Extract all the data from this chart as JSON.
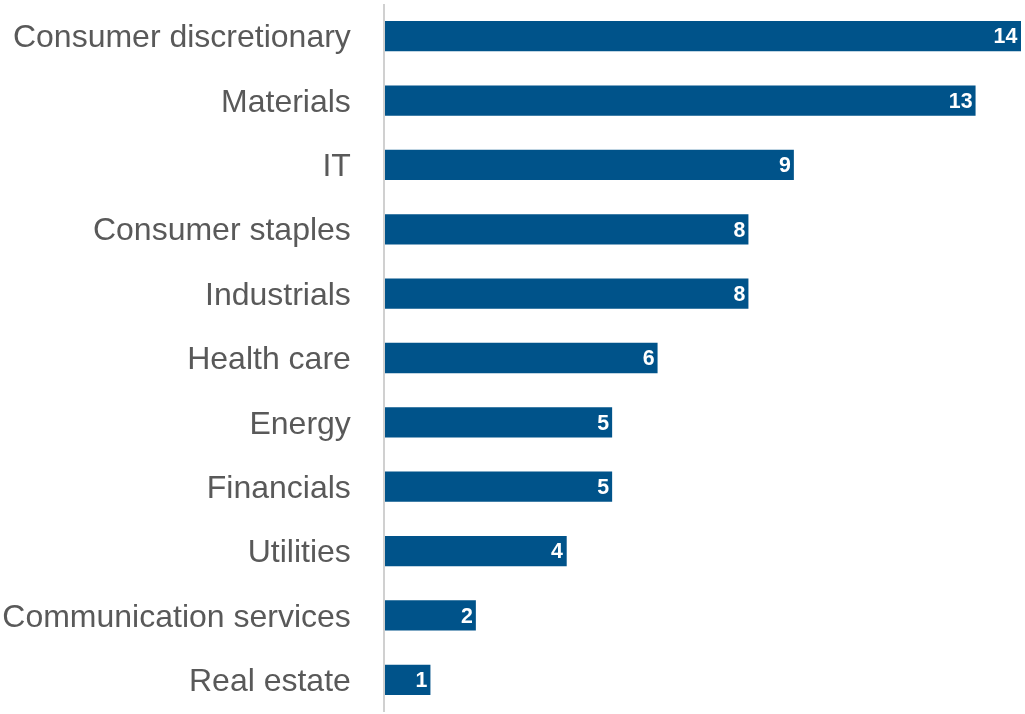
{
  "chart_data": {
    "type": "bar",
    "orientation": "horizontal",
    "categories": [
      "Consumer discretionary",
      "Materials",
      "IT",
      "Consumer staples",
      "Industrials",
      "Health care",
      "Energy",
      "Financials",
      "Utilities",
      "Communication services",
      "Real estate"
    ],
    "values": [
      14,
      13,
      9,
      8,
      8,
      6,
      5,
      5,
      4,
      2,
      1
    ],
    "color": "#00538a",
    "xlim": [
      0,
      14
    ],
    "data_labels": true,
    "tick_labels": "y"
  }
}
